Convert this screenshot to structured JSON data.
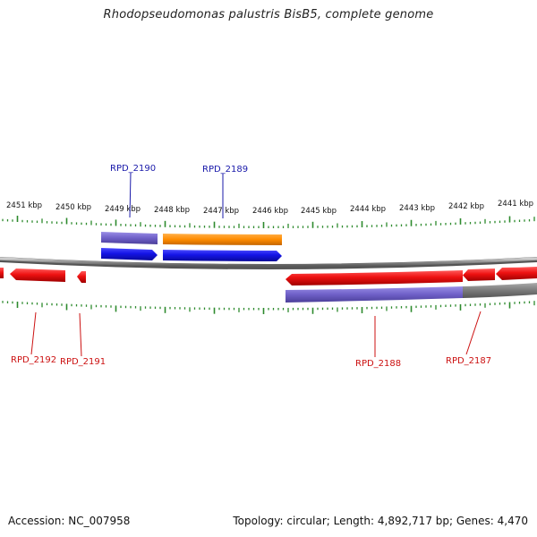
{
  "title": "Rhodopseudomonas palustris BisB5, complete genome",
  "accession_label": "Accession: NC_007958",
  "genome_info": "Topology: circular; Length: 4,892,717 bp; Genes: 4,470",
  "ticks": [
    {
      "label": "2451 kbp",
      "kbp": 2451
    },
    {
      "label": "2450 kbp",
      "kbp": 2450
    },
    {
      "label": "2449 kbp",
      "kbp": 2449
    },
    {
      "label": "2448 kbp",
      "kbp": 2448
    },
    {
      "label": "2447 kbp",
      "kbp": 2447
    },
    {
      "label": "2446 kbp",
      "kbp": 2446
    },
    {
      "label": "2445 kbp",
      "kbp": 2445
    },
    {
      "label": "2444 kbp",
      "kbp": 2444
    },
    {
      "label": "2443 kbp",
      "kbp": 2443
    },
    {
      "label": "2442 kbp",
      "kbp": 2442
    },
    {
      "label": "2441 kbp",
      "kbp": 2441
    }
  ],
  "genes": {
    "rpd_2190": {
      "label": "RPD_2190",
      "strand": "forward"
    },
    "rpd_2189": {
      "label": "RPD_2189",
      "strand": "forward"
    },
    "rpd_2192": {
      "label": "RPD_2192",
      "strand": "reverse"
    },
    "rpd_2191": {
      "label": "RPD_2191",
      "strand": "reverse"
    },
    "rpd_2188": {
      "label": "RPD_2188",
      "strand": "reverse"
    },
    "rpd_2187": {
      "label": "RPD_2187",
      "strand": "reverse"
    }
  },
  "colors": {
    "forward_label": "#1a1aaa",
    "reverse_label": "#cc1111",
    "forward_cds": "#1414e6",
    "reverse_cds": "#ee1111",
    "rna": "#7a6ad0",
    "orange_feature": "#ff8c00",
    "tick": "#2d8a2d",
    "backbone": "#888888",
    "pseudo_grey": "#7a7a7a"
  }
}
